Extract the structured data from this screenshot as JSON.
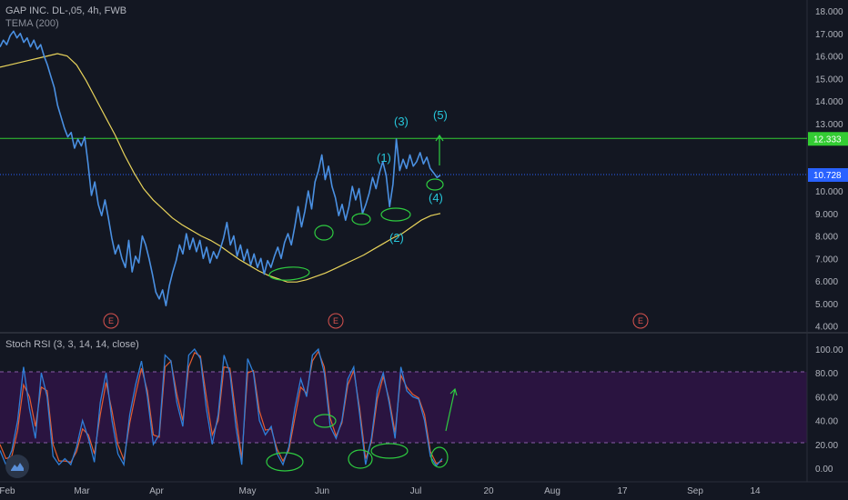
{
  "header": {
    "title": "GAP INC. DL-,05, 4h, FWB",
    "indicator": "TEMA (200)",
    "stoch_label": "Stoch RSI (3, 3, 14, 14, close)"
  },
  "colors": {
    "background": "#131722",
    "price": "#4a90e2",
    "tema": "#e8d35b",
    "hline": "#33cc33",
    "current": "#2962ff",
    "stoch_k": "#2f7fd8",
    "stoch_d": "#e55b2f",
    "band": "#2a1440",
    "annot": "#26c6da",
    "mark": "#2ecc40",
    "earn": "#d9534f"
  },
  "icons": {
    "logo": "tradingview-logo-icon"
  },
  "chart_data": [
    {
      "type": "line",
      "title": "GAP INC. DL-,05, 4h, FWB",
      "x_tick_labels": [
        "Feb",
        "Mar",
        "Apr",
        "May",
        "Jun",
        "Jul",
        "20",
        "Aug",
        "17",
        "Sep",
        "14"
      ],
      "y_tick_labels": [
        "18.000",
        "17.000",
        "16.000",
        "15.000",
        "14.000",
        "13.000",
        "12.000",
        "11.000",
        "10.000",
        "9.000",
        "8.000",
        "7.000",
        "6.000",
        "5.000",
        "4.000"
      ],
      "ylim": [
        4,
        18
      ],
      "grid": false,
      "series": [
        {
          "name": "",
          "values": [
            16.4,
            16.7,
            16.5,
            16.9,
            17.1,
            16.8,
            17.0,
            16.6,
            16.8,
            16.4,
            16.7,
            16.3,
            16.5,
            16.0,
            15.6,
            15.1,
            14.6,
            13.8,
            13.3,
            12.8,
            12.4,
            12.6,
            11.9,
            12.3,
            12.0,
            12.4,
            11.2,
            9.8,
            10.4,
            9.4,
            8.9,
            9.6,
            8.8,
            7.9,
            7.2,
            7.6,
            7.0,
            6.6,
            7.8,
            6.4,
            7.1,
            6.8,
            8.0,
            7.6,
            7.0,
            6.3,
            5.5,
            5.2,
            5.6,
            4.9,
            5.8,
            6.4,
            6.9,
            7.6,
            7.2,
            8.1,
            7.4,
            7.9,
            7.3,
            7.8,
            7.0,
            7.5,
            6.8,
            7.3,
            7.0,
            7.4,
            7.9,
            8.6,
            7.6,
            8.0,
            7.1,
            7.6,
            6.9,
            7.4,
            6.7,
            7.2,
            6.6,
            7.0,
            6.3,
            6.9,
            6.6,
            7.1,
            7.5,
            7.0,
            7.7,
            8.1,
            7.6,
            8.4,
            9.3,
            8.4,
            9.1,
            10.0,
            9.2,
            10.4,
            10.9,
            11.6,
            10.5,
            11.1,
            10.2,
            9.7,
            8.9,
            9.4,
            8.7,
            9.3,
            10.2,
            9.6,
            10.1,
            9.0,
            9.4,
            9.9,
            10.6,
            10.1,
            10.8,
            11.3,
            10.7,
            9.3,
            10.3,
            12.3,
            10.9,
            11.4,
            11.0,
            11.6,
            11.1,
            11.3,
            11.7,
            11.2,
            11.5,
            11.0,
            10.8,
            10.6,
            10.7
          ]
        },
        {
          "name": "TEMA (200)",
          "values": [
            15.5,
            15.6,
            15.7,
            15.8,
            15.9,
            16.0,
            16.1,
            16.0,
            15.6,
            14.9,
            14.1,
            13.3,
            12.5,
            11.6,
            10.8,
            10.1,
            9.6,
            9.2,
            8.8,
            8.5,
            8.25,
            8.0,
            7.8,
            7.55,
            7.25,
            6.95,
            6.7,
            6.45,
            6.25,
            6.1,
            5.95,
            5.95,
            6.05,
            6.2,
            6.35,
            6.55,
            6.75,
            6.95,
            7.15,
            7.4,
            7.65,
            7.9,
            8.1,
            8.4,
            8.7,
            8.9,
            9.0
          ]
        }
      ],
      "h_level": 12.333,
      "h_level_label": "12.333",
      "current_price": 10.728,
      "current_price_label": "10.728",
      "annotations": [
        "(1)",
        "(2)",
        "(3)",
        "(4)",
        "(5)"
      ],
      "earnings_markers": [
        "E",
        "E",
        "E"
      ]
    },
    {
      "type": "line",
      "title": "Stoch RSI (3, 3, 14, 14, close)",
      "y_tick_labels": [
        "100.00",
        "80.00",
        "60.00",
        "40.00",
        "20.00",
        "0.00"
      ],
      "ylim": [
        -8,
        105
      ],
      "band": [
        20,
        80
      ],
      "series": [
        {
          "name": "",
          "values": [
            15,
            3,
            15,
            40,
            85,
            50,
            25,
            80,
            60,
            10,
            3,
            8,
            3,
            18,
            40,
            25,
            5,
            55,
            80,
            40,
            12,
            3,
            45,
            70,
            90,
            60,
            20,
            28,
            95,
            90,
            55,
            35,
            95,
            100,
            92,
            50,
            20,
            45,
            95,
            80,
            35,
            3,
            92,
            80,
            40,
            28,
            35,
            12,
            3,
            18,
            50,
            75,
            60,
            95,
            100,
            80,
            35,
            25,
            40,
            75,
            85,
            45,
            3,
            25,
            65,
            80,
            55,
            25,
            85,
            65,
            60,
            58,
            40,
            10,
            2,
            8
          ]
        },
        {
          "name": "",
          "values": [
            20,
            8,
            10,
            32,
            70,
            60,
            35,
            68,
            65,
            20,
            6,
            6,
            5,
            14,
            33,
            28,
            12,
            45,
            72,
            48,
            20,
            7,
            38,
            62,
            84,
            65,
            28,
            26,
            85,
            90,
            62,
            40,
            85,
            97,
            94,
            60,
            28,
            40,
            85,
            84,
            45,
            8,
            80,
            82,
            48,
            32,
            33,
            16,
            6,
            15,
            42,
            68,
            63,
            90,
            98,
            85,
            42,
            27,
            38,
            70,
            82,
            50,
            8,
            22,
            58,
            77,
            58,
            30,
            78,
            68,
            62,
            59,
            45,
            14,
            4,
            6
          ]
        }
      ]
    }
  ]
}
